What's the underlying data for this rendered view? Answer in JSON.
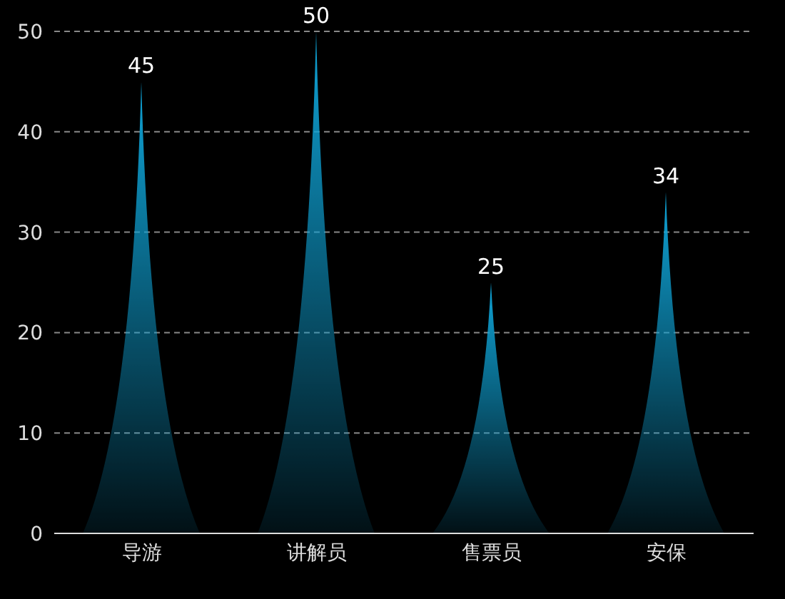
{
  "chart_data": {
    "type": "bar",
    "categories": [
      "导游",
      "讲解员",
      "售票员",
      "安保"
    ],
    "values": [
      45,
      50,
      25,
      34
    ],
    "color": "#0fa3d6",
    "ylim": [
      0,
      50
    ],
    "yticks": [
      0,
      10,
      20,
      30,
      40,
      50
    ],
    "grid": "y",
    "data_labels": true
  }
}
